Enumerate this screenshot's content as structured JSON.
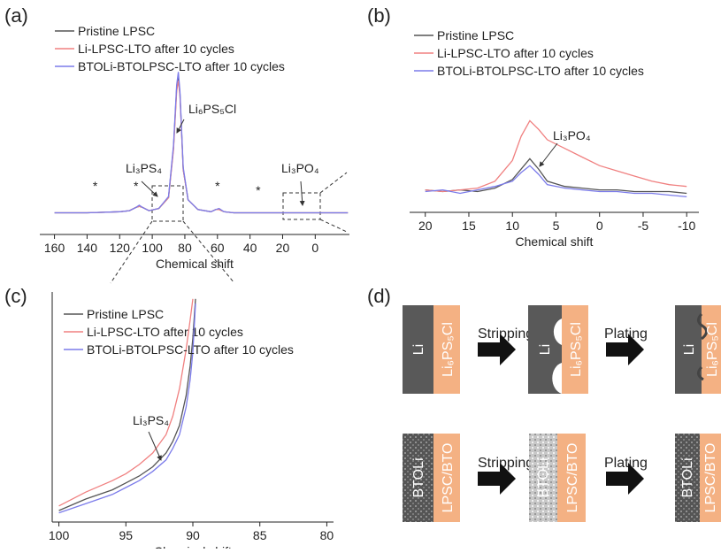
{
  "chart_data": [
    {
      "type": "line",
      "panel": "(a)",
      "xlabel": "Chemical shift",
      "x": [
        160,
        140,
        120,
        114,
        110,
        108,
        106,
        102,
        96,
        90,
        87,
        85,
        84,
        83,
        81,
        78,
        72,
        64,
        61,
        59,
        56,
        50,
        30,
        10,
        -10,
        -20
      ],
      "series": [
        {
          "name": "Pristine LPSC",
          "color": "#555555",
          "values": [
            0,
            0,
            1,
            2,
            5,
            6,
            5,
            2,
            4,
            14,
            60,
            115,
            125,
            110,
            40,
            12,
            3,
            1,
            3,
            3,
            1,
            0,
            0,
            0,
            0,
            0
          ]
        },
        {
          "name": "Li-LPSC-LTO after 10 cycles",
          "color": "#f08080",
          "values": [
            0,
            0,
            1,
            2,
            5,
            6,
            5,
            2,
            4,
            14,
            58,
            112,
            122,
            108,
            40,
            12,
            3,
            1,
            3,
            3,
            1,
            0,
            0,
            0,
            0,
            0
          ]
        },
        {
          "name": "BTOLi-BTOLPSC-LTO after 10 cycles",
          "color": "#7b7bea",
          "values": [
            0,
            0,
            1,
            2,
            5,
            7,
            5,
            2,
            4,
            15,
            62,
            118,
            130,
            112,
            42,
            12,
            3,
            1,
            3,
            4,
            1,
            0,
            0,
            0,
            0,
            0
          ]
        }
      ],
      "xlim": [
        169,
        -21
      ],
      "ylim": [
        -20,
        180
      ],
      "xticks": [
        160,
        140,
        120,
        100,
        80,
        60,
        40,
        20,
        0
      ],
      "annotations": [
        "Li₆PS₅Cl",
        "Li₃PS₄",
        "Li₃PO₄"
      ],
      "peak_markers": [
        "*",
        "*",
        "*",
        "*"
      ]
    },
    {
      "type": "line",
      "panel": "(b)",
      "xlabel": "Chemical shift",
      "x": [
        20,
        18,
        16,
        14,
        12,
        10,
        9,
        8,
        7,
        6,
        4,
        2,
        0,
        -2,
        -4,
        -6,
        -8,
        -10
      ],
      "series": [
        {
          "name": "Pristine LPSC",
          "color": "#555555",
          "values": [
            3,
            2,
            3,
            2,
            4,
            9,
            15,
            21,
            15,
            8,
            5,
            4,
            3,
            3,
            2,
            2,
            2,
            1
          ]
        },
        {
          "name": "Li-LPSC-LTO after 10 cycles",
          "color": "#f08080",
          "values": [
            3,
            2,
            3,
            4,
            8,
            20,
            34,
            43,
            38,
            32,
            27,
            22,
            17,
            14,
            11,
            8,
            6,
            5
          ]
        },
        {
          "name": "BTOLi-BTOLPSC-LTO after 10 cycles",
          "color": "#7b7bea",
          "values": [
            2,
            3,
            1,
            3,
            5,
            8,
            13,
            17,
            12,
            6,
            4,
            3,
            2,
            2,
            1,
            1,
            0,
            -1
          ]
        }
      ],
      "xlim": [
        21.8,
        -11.4
      ],
      "ylim": [
        -10,
        100
      ],
      "xticks": [
        20,
        15,
        10,
        5,
        0,
        -5,
        -10
      ],
      "annotations": [
        "Li₃PO₄"
      ]
    },
    {
      "type": "line",
      "panel": "(c)",
      "xlabel": "Chemical shift",
      "x": [
        100,
        98,
        96,
        95,
        94,
        93,
        92,
        91.5,
        91,
        90.5,
        90.2,
        90,
        89.8
      ],
      "series": [
        {
          "name": "Pristine LPSC",
          "color": "#555555",
          "values": [
            5,
            10,
            14,
            17,
            20,
            24,
            30,
            35,
            42,
            55,
            68,
            80,
            97
          ]
        },
        {
          "name": "Li-LPSC-LTO after 10 cycles",
          "color": "#f08080",
          "values": [
            7,
            13,
            18,
            21,
            25,
            30,
            38,
            46,
            58,
            75,
            88,
            97,
            null
          ]
        },
        {
          "name": "BTOLi-BTOLPSC-LTO after 10 cycles",
          "color": "#7b7bea",
          "values": [
            4,
            8,
            12,
            15,
            18,
            22,
            27,
            32,
            38,
            50,
            62,
            74,
            95
          ]
        }
      ],
      "xlim": [
        100.5,
        79.5
      ],
      "ylim": [
        0,
        100
      ],
      "xticks": [
        100,
        95,
        90,
        85,
        80
      ],
      "annotations": [
        "Li₃PS₄"
      ]
    }
  ],
  "diagram": {
    "panel": "(d)",
    "step1": "Stripping",
    "step2": "Plating",
    "top": {
      "anode": "Li",
      "electrolyte": "Li₆PS₅Cl"
    },
    "bottom": {
      "anode": "BTOLi",
      "electrolyte": "LPSC/BTO"
    }
  }
}
